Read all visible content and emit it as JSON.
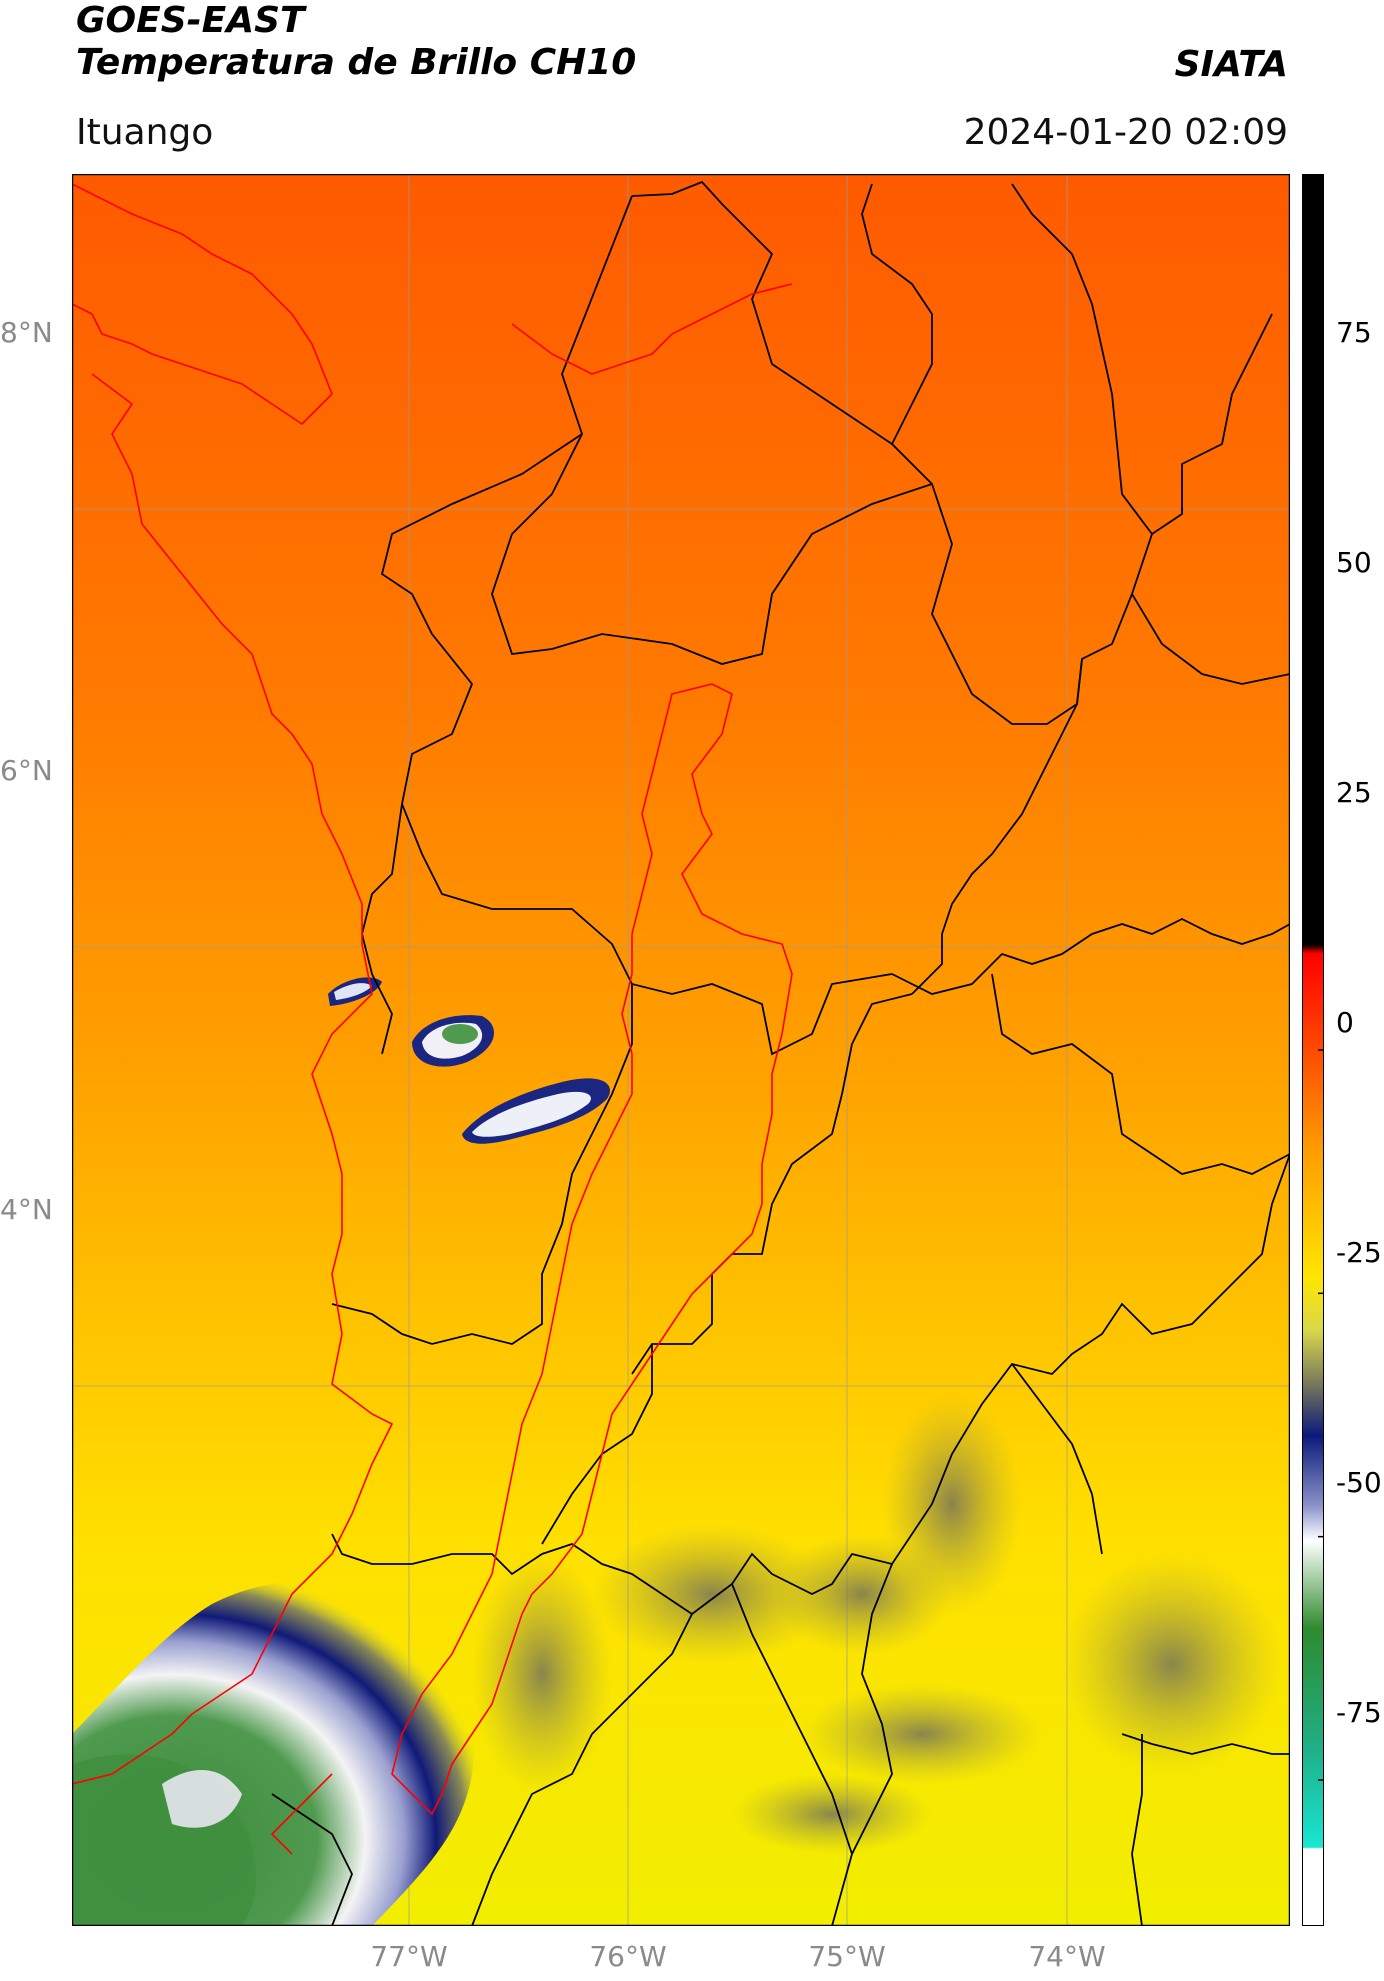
{
  "header": {
    "line1": "GOES-EAST",
    "line2": "Temperatura de Brillo CH10",
    "brand": "SIATA",
    "location": "Ituango",
    "datetime": "2024-01-20 02:09"
  },
  "axes": {
    "lat_labels": [
      "8°N",
      "6°N",
      "4°N"
    ],
    "lon_labels": [
      "77°W",
      "76°W",
      "75°W",
      "74°W"
    ]
  },
  "colorbar": {
    "tick_labels": [
      "75",
      "50",
      "25",
      "0",
      "-25",
      "-50",
      "-75"
    ],
    "ticks": [
      75,
      50,
      25,
      0,
      -25,
      -50,
      -75
    ],
    "range": [
      -90,
      90
    ],
    "colors": {
      "black": "#000000",
      "red": "#ff0000",
      "orange": "#ff9a00",
      "yellow": "#ffff00",
      "olive": "#8a8a45",
      "navy": "#0b1a7a",
      "white": "#ffffff",
      "green": "#2e8b2e",
      "cyan": "#19e6d2"
    }
  },
  "map_colors": {
    "warm_top": "#ff5a00",
    "mid": "#ffa300",
    "bottom": "#f7f000",
    "cloud_navy": "#141e7a",
    "cloud_green": "#3f8f3f",
    "boundary_black": "#000000",
    "boundary_red": "#ff0000",
    "grid": "#9a9a9a"
  }
}
